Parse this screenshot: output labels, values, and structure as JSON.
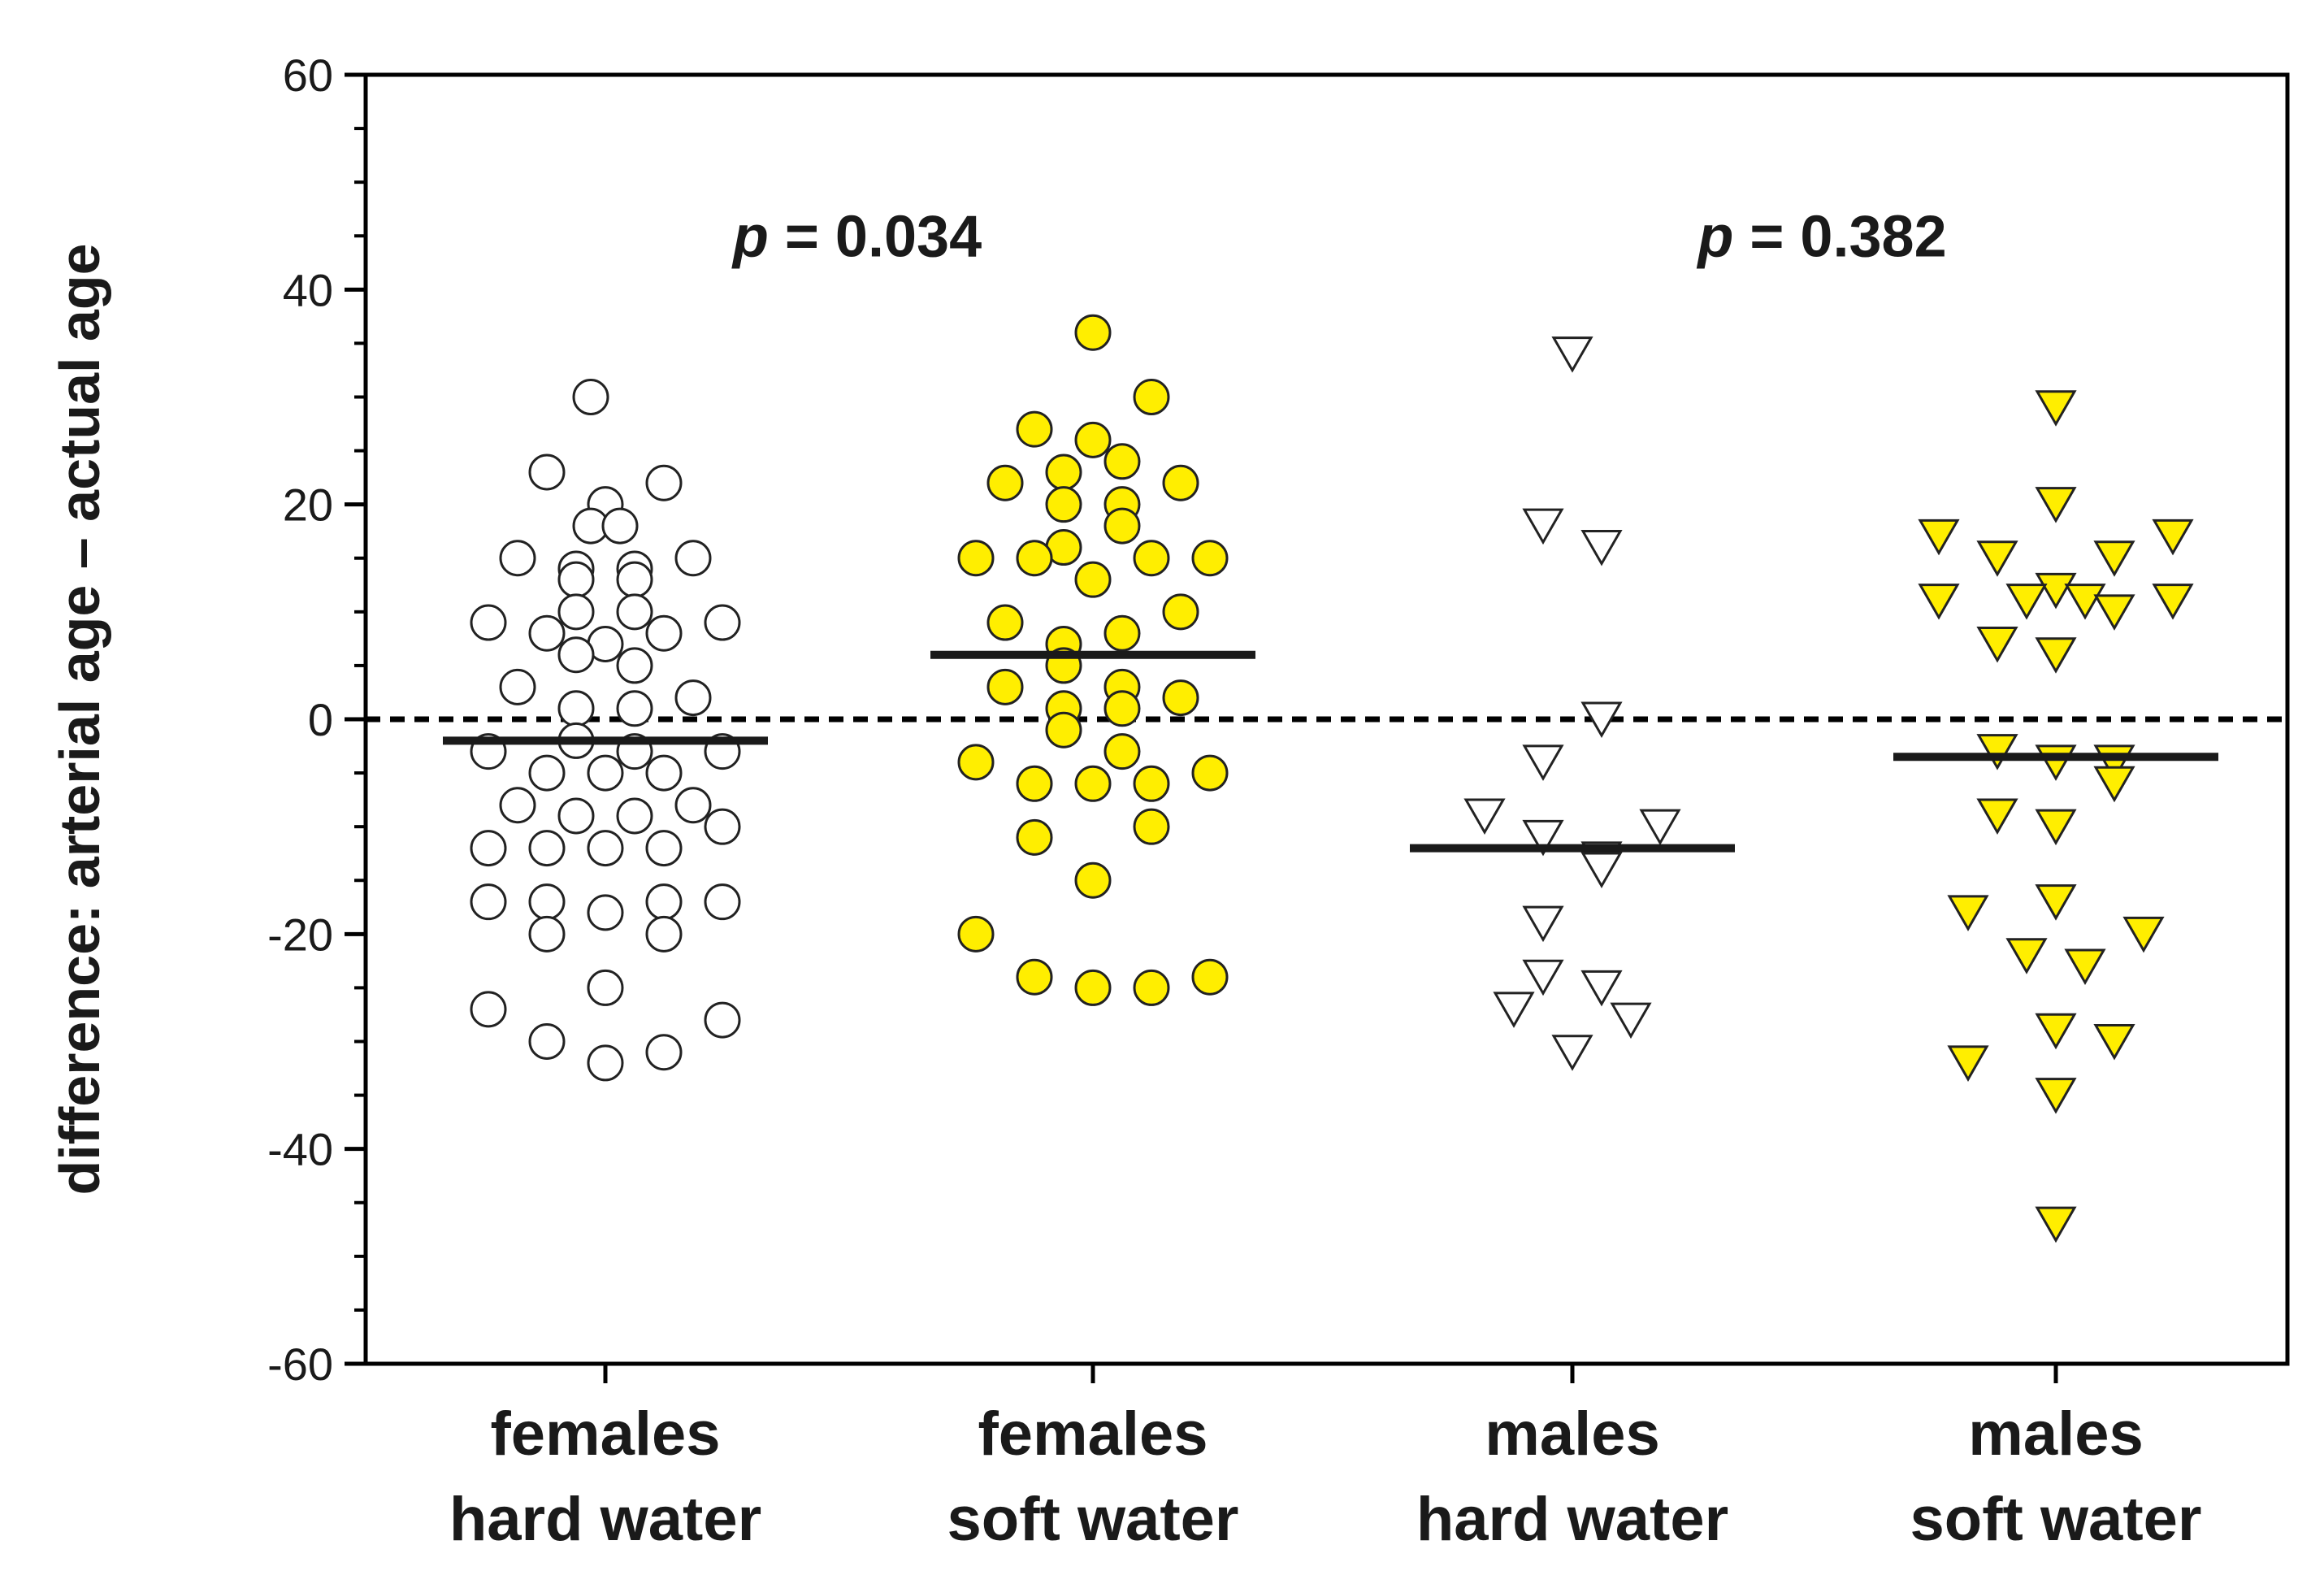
{
  "chart_data": {
    "type": "scatter",
    "title": "",
    "xlabel": "",
    "ylabel": "difference: arterial age – actual age",
    "ylim": [
      -60,
      60
    ],
    "yticks": [
      -60,
      -40,
      -20,
      0,
      20,
      40,
      60
    ],
    "reference_line": {
      "y": 0,
      "style": "dashed"
    },
    "categories": [
      {
        "line1": "females",
        "line2": "hard water"
      },
      {
        "line1": "females",
        "line2": "soft water"
      },
      {
        "line1": "males",
        "line2": "hard water"
      },
      {
        "line1": "males",
        "line2": "soft water"
      }
    ],
    "series": [
      {
        "name": "females hard water",
        "marker": "circle",
        "fill": "#ffffff",
        "mean": -2,
        "points": [
          {
            "dx": -0.03,
            "y": 30
          },
          {
            "dx": -0.12,
            "y": 23
          },
          {
            "dx": 0.12,
            "y": 22
          },
          {
            "dx": 0.0,
            "y": 20
          },
          {
            "dx": -0.03,
            "y": 18
          },
          {
            "dx": 0.03,
            "y": 18
          },
          {
            "dx": -0.18,
            "y": 15
          },
          {
            "dx": 0.18,
            "y": 15
          },
          {
            "dx": -0.06,
            "y": 14
          },
          {
            "dx": 0.06,
            "y": 14
          },
          {
            "dx": -0.06,
            "y": 13
          },
          {
            "dx": 0.06,
            "y": 13
          },
          {
            "dx": -0.24,
            "y": 9
          },
          {
            "dx": 0.24,
            "y": 9
          },
          {
            "dx": -0.06,
            "y": 10
          },
          {
            "dx": 0.06,
            "y": 10
          },
          {
            "dx": -0.12,
            "y": 8
          },
          {
            "dx": 0.12,
            "y": 8
          },
          {
            "dx": 0.0,
            "y": 7
          },
          {
            "dx": -0.06,
            "y": 6
          },
          {
            "dx": 0.06,
            "y": 5
          },
          {
            "dx": -0.18,
            "y": 3
          },
          {
            "dx": 0.18,
            "y": 2
          },
          {
            "dx": -0.06,
            "y": 1
          },
          {
            "dx": 0.06,
            "y": 1
          },
          {
            "dx": -0.24,
            "y": -3
          },
          {
            "dx": 0.24,
            "y": -3
          },
          {
            "dx": -0.06,
            "y": -2
          },
          {
            "dx": 0.06,
            "y": -3
          },
          {
            "dx": -0.12,
            "y": -5
          },
          {
            "dx": 0.0,
            "y": -5
          },
          {
            "dx": 0.12,
            "y": -5
          },
          {
            "dx": -0.18,
            "y": -8
          },
          {
            "dx": 0.18,
            "y": -8
          },
          {
            "dx": -0.06,
            "y": -9
          },
          {
            "dx": 0.06,
            "y": -9
          },
          {
            "dx": 0.24,
            "y": -10
          },
          {
            "dx": -0.24,
            "y": -12
          },
          {
            "dx": -0.12,
            "y": -12
          },
          {
            "dx": 0.0,
            "y": -12
          },
          {
            "dx": 0.12,
            "y": -12
          },
          {
            "dx": -0.24,
            "y": -17
          },
          {
            "dx": -0.12,
            "y": -17
          },
          {
            "dx": 0.12,
            "y": -17
          },
          {
            "dx": 0.24,
            "y": -17
          },
          {
            "dx": 0.0,
            "y": -18
          },
          {
            "dx": -0.12,
            "y": -20
          },
          {
            "dx": 0.12,
            "y": -20
          },
          {
            "dx": 0.0,
            "y": -25
          },
          {
            "dx": -0.24,
            "y": -27
          },
          {
            "dx": 0.24,
            "y": -28
          },
          {
            "dx": -0.12,
            "y": -30
          },
          {
            "dx": 0.12,
            "y": -31
          },
          {
            "dx": 0.0,
            "y": -32
          }
        ]
      },
      {
        "name": "females soft water",
        "marker": "circle",
        "fill": "#ffee00",
        "mean": 6,
        "points": [
          {
            "dx": 0.0,
            "y": 36
          },
          {
            "dx": 0.12,
            "y": 30
          },
          {
            "dx": -0.12,
            "y": 27
          },
          {
            "dx": 0.0,
            "y": 26
          },
          {
            "dx": 0.06,
            "y": 24
          },
          {
            "dx": -0.06,
            "y": 23
          },
          {
            "dx": -0.18,
            "y": 22
          },
          {
            "dx": 0.18,
            "y": 22
          },
          {
            "dx": -0.06,
            "y": 20
          },
          {
            "dx": 0.06,
            "y": 20
          },
          {
            "dx": 0.06,
            "y": 18
          },
          {
            "dx": -0.06,
            "y": 16
          },
          {
            "dx": -0.24,
            "y": 15
          },
          {
            "dx": -0.12,
            "y": 15
          },
          {
            "dx": 0.12,
            "y": 15
          },
          {
            "dx": 0.24,
            "y": 15
          },
          {
            "dx": 0.0,
            "y": 13
          },
          {
            "dx": 0.18,
            "y": 10
          },
          {
            "dx": -0.18,
            "y": 9
          },
          {
            "dx": 0.06,
            "y": 8
          },
          {
            "dx": -0.06,
            "y": 7
          },
          {
            "dx": -0.06,
            "y": 5
          },
          {
            "dx": -0.18,
            "y": 3
          },
          {
            "dx": 0.06,
            "y": 3
          },
          {
            "dx": 0.18,
            "y": 2
          },
          {
            "dx": -0.06,
            "y": 1
          },
          {
            "dx": 0.06,
            "y": 1
          },
          {
            "dx": -0.06,
            "y": -1
          },
          {
            "dx": 0.06,
            "y": -3
          },
          {
            "dx": -0.24,
            "y": -4
          },
          {
            "dx": 0.24,
            "y": -5
          },
          {
            "dx": -0.12,
            "y": -6
          },
          {
            "dx": 0.0,
            "y": -6
          },
          {
            "dx": 0.12,
            "y": -6
          },
          {
            "dx": 0.12,
            "y": -10
          },
          {
            "dx": -0.12,
            "y": -11
          },
          {
            "dx": 0.0,
            "y": -15
          },
          {
            "dx": -0.24,
            "y": -20
          },
          {
            "dx": -0.12,
            "y": -24
          },
          {
            "dx": 0.24,
            "y": -24
          },
          {
            "dx": 0.0,
            "y": -25
          },
          {
            "dx": 0.12,
            "y": -25
          }
        ]
      },
      {
        "name": "males hard water",
        "marker": "triangle-down",
        "fill": "#ffffff",
        "mean": -12,
        "points": [
          {
            "dx": 0.0,
            "y": 34
          },
          {
            "dx": -0.06,
            "y": 18
          },
          {
            "dx": 0.06,
            "y": 16
          },
          {
            "dx": 0.06,
            "y": 0
          },
          {
            "dx": -0.06,
            "y": -4
          },
          {
            "dx": -0.18,
            "y": -9
          },
          {
            "dx": 0.18,
            "y": -10
          },
          {
            "dx": -0.06,
            "y": -11
          },
          {
            "dx": 0.06,
            "y": -13
          },
          {
            "dx": 0.06,
            "y": -14
          },
          {
            "dx": -0.06,
            "y": -19
          },
          {
            "dx": -0.06,
            "y": -24
          },
          {
            "dx": 0.06,
            "y": -25
          },
          {
            "dx": -0.12,
            "y": -27
          },
          {
            "dx": 0.12,
            "y": -28
          },
          {
            "dx": 0.0,
            "y": -31
          }
        ]
      },
      {
        "name": "males soft water",
        "marker": "triangle-down",
        "fill": "#ffee00",
        "mean": -3.5,
        "points": [
          {
            "dx": 0.0,
            "y": 29
          },
          {
            "dx": 0.0,
            "y": 20
          },
          {
            "dx": -0.24,
            "y": 17
          },
          {
            "dx": 0.24,
            "y": 17
          },
          {
            "dx": -0.12,
            "y": 15
          },
          {
            "dx": 0.12,
            "y": 15
          },
          {
            "dx": 0.0,
            "y": 12
          },
          {
            "dx": -0.24,
            "y": 11
          },
          {
            "dx": -0.06,
            "y": 11
          },
          {
            "dx": 0.06,
            "y": 11
          },
          {
            "dx": 0.24,
            "y": 11
          },
          {
            "dx": 0.12,
            "y": 10
          },
          {
            "dx": -0.12,
            "y": 7
          },
          {
            "dx": 0.0,
            "y": 6
          },
          {
            "dx": -0.12,
            "y": -3
          },
          {
            "dx": 0.0,
            "y": -4
          },
          {
            "dx": 0.12,
            "y": -4
          },
          {
            "dx": 0.12,
            "y": -6
          },
          {
            "dx": -0.12,
            "y": -9
          },
          {
            "dx": 0.0,
            "y": -10
          },
          {
            "dx": 0.0,
            "y": -17
          },
          {
            "dx": -0.18,
            "y": -18
          },
          {
            "dx": 0.18,
            "y": -20
          },
          {
            "dx": -0.06,
            "y": -22
          },
          {
            "dx": 0.06,
            "y": -23
          },
          {
            "dx": 0.0,
            "y": -29
          },
          {
            "dx": 0.12,
            "y": -30
          },
          {
            "dx": -0.18,
            "y": -32
          },
          {
            "dx": 0.0,
            "y": -35
          },
          {
            "dx": 0.0,
            "y": -47
          }
        ]
      }
    ],
    "annotations": [
      {
        "italic": "p",
        "rest": " = 0.034",
        "y": 45,
        "between": [
          0,
          1
        ]
      },
      {
        "italic": "p",
        "rest": " = 0.382",
        "y": 45,
        "between": [
          2,
          3
        ]
      }
    ]
  }
}
